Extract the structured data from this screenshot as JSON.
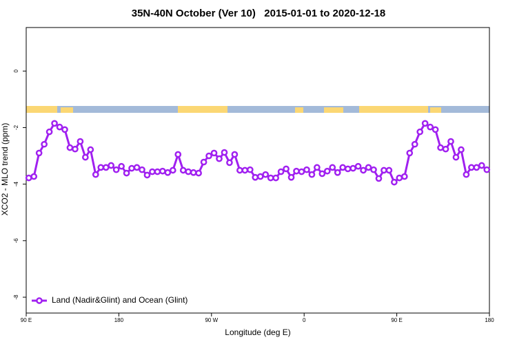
{
  "chart_data": {
    "type": "line",
    "title": "35N-40N October (Ver 10)   2015-01-01 to 2020-12-18",
    "xlabel": "Longitude (deg E)",
    "ylabel": "XCO2 - MLO trend (ppm)",
    "x": [
      92.5,
      97.5,
      102.5,
      107.5,
      112.5,
      117.5,
      122.5,
      127.5,
      132.5,
      137.5,
      142.5,
      147.5,
      152.5,
      157.5,
      162.5,
      167.5,
      172.5,
      177.5,
      182.5,
      187.5,
      192.5,
      197.5,
      202.5,
      207.5,
      212.5,
      217.5,
      222.5,
      227.5,
      232.5,
      237.5,
      242.5,
      247.5,
      252.5,
      257.5,
      262.5,
      267.5,
      272.5,
      277.5,
      282.5,
      287.5,
      292.5,
      297.5,
      302.5,
      307.5,
      312.5,
      317.5,
      322.5,
      327.5,
      332.5,
      337.5,
      342.5,
      347.5,
      352.5,
      357.5,
      362.5,
      367.5,
      372.5,
      377.5,
      382.5,
      387.5,
      392.5,
      397.5,
      402.5,
      407.5,
      412.5,
      417.5,
      422.5,
      427.5,
      432.5,
      437.5,
      442.5,
      447.5,
      452.5,
      457.5,
      462.5,
      467.5,
      472.5,
      477.5,
      482.5,
      487.5,
      492.5,
      497.5,
      502.5,
      507.5,
      512.5,
      517.5,
      522.5,
      527.5,
      532.5,
      537.5
    ],
    "series": [
      {
        "name": "Land (Nadir&Glint) and Ocean (Glint)",
        "color": "#a020f0",
        "values": [
          -3.78,
          -3.73,
          -2.9,
          -2.59,
          -2.15,
          -1.85,
          -1.98,
          -2.07,
          -2.71,
          -2.76,
          -2.49,
          -3.05,
          -2.78,
          -3.66,
          -3.41,
          -3.41,
          -3.34,
          -3.49,
          -3.37,
          -3.61,
          -3.44,
          -3.41,
          -3.49,
          -3.68,
          -3.56,
          -3.56,
          -3.54,
          -3.59,
          -3.51,
          -2.95,
          -3.51,
          -3.56,
          -3.59,
          -3.61,
          -3.22,
          -3.0,
          -2.9,
          -3.1,
          -2.88,
          -3.24,
          -2.95,
          -3.51,
          -3.51,
          -3.49,
          -3.76,
          -3.73,
          -3.66,
          -3.78,
          -3.78,
          -3.56,
          -3.46,
          -3.76,
          -3.54,
          -3.56,
          -3.49,
          -3.66,
          -3.41,
          -3.63,
          -3.54,
          -3.41,
          -3.59,
          -3.41,
          -3.46,
          -3.44,
          -3.37,
          -3.51,
          -3.41,
          -3.49,
          -3.8,
          -3.51,
          -3.51,
          -3.93,
          -3.78,
          -3.73,
          -2.9,
          -2.59,
          -2.15,
          -1.85,
          -1.98,
          -2.07,
          -2.71,
          -2.76,
          -2.49,
          -3.05,
          -2.78,
          -3.66,
          -3.41,
          -3.41,
          -3.34,
          -3.49
        ]
      }
    ],
    "xlim": [
      90,
      540
    ],
    "xticks": [
      {
        "value": 90,
        "label": "90 E"
      },
      180,
      {
        "value": 270,
        "label": "90 W"
      },
      {
        "value": 360,
        "label": "0"
      },
      {
        "value": 450,
        "label": "90 E"
      },
      {
        "value": 540,
        "label": "180"
      }
    ],
    "ylim": [
      -8.56,
      1.54
    ],
    "yticks": [
      0,
      -2,
      -4,
      -6,
      -8
    ],
    "legend": "bottomleft",
    "grid": false
  }
}
